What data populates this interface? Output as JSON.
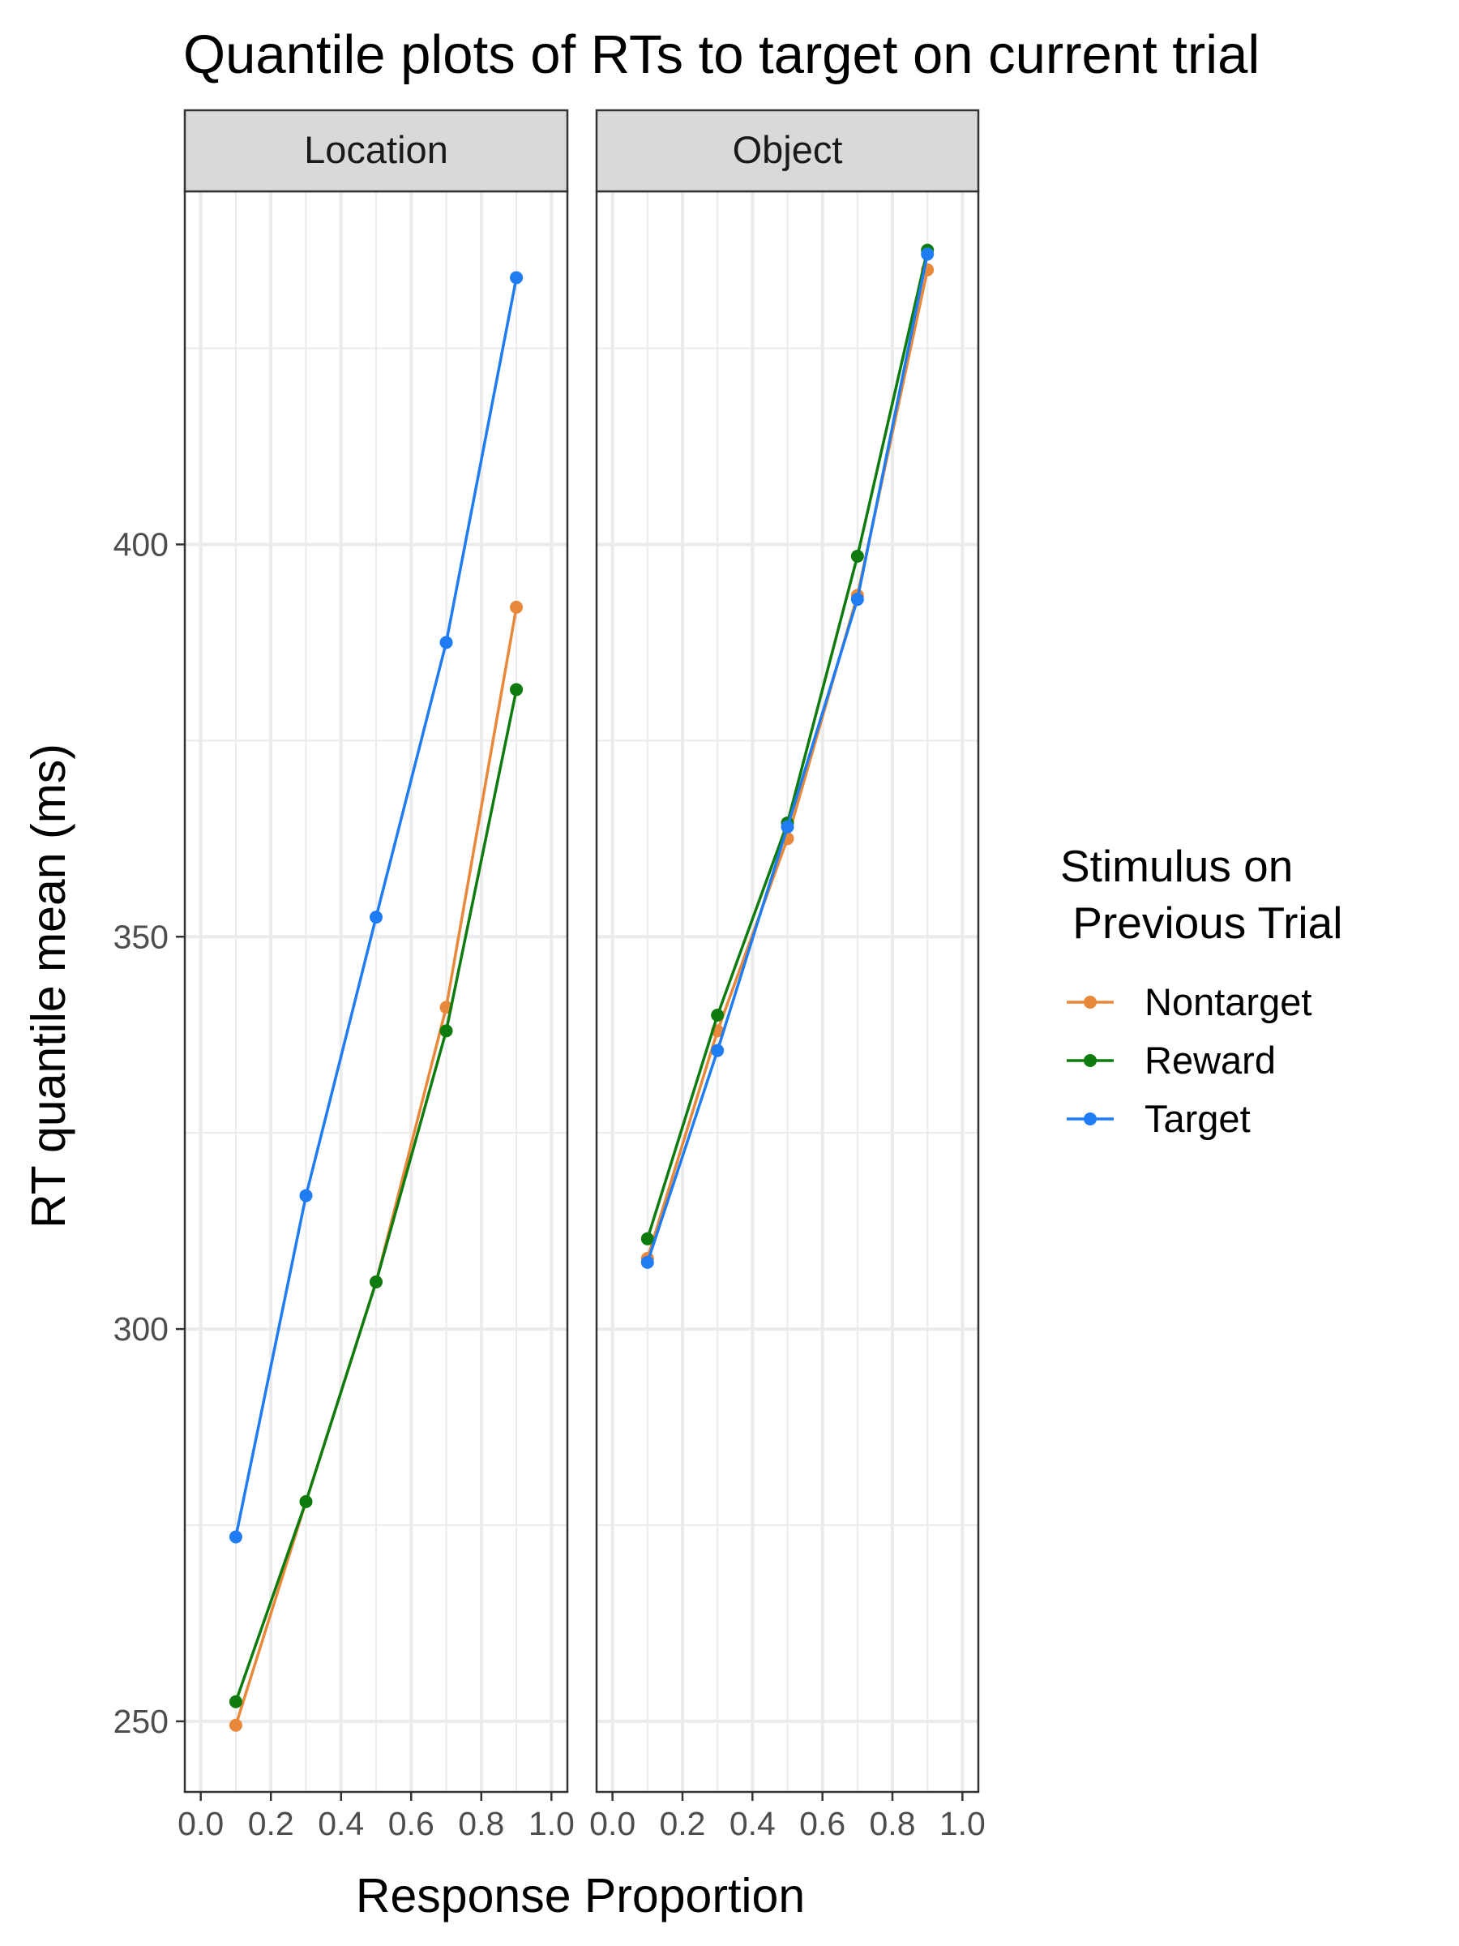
{
  "chart_data": {
    "type": "line",
    "title": "Quantile plots of RTs to target on current trial",
    "xlabel": "Response Proportion",
    "ylabel": "RT quantile mean (ms)",
    "xlim": [
      0,
      1
    ],
    "ylim": [
      241,
      445
    ],
    "x_ticks": [
      {
        "value": 0.0,
        "label": "0.0"
      },
      {
        "value": 0.2,
        "label": "0.2"
      },
      {
        "value": 0.4,
        "label": "0.4"
      },
      {
        "value": 0.6,
        "label": "0.6"
      },
      {
        "value": 0.8,
        "label": "0.8"
      },
      {
        "value": 1.0,
        "label": "1.0"
      }
    ],
    "y_ticks": [
      {
        "value": 250,
        "label": "250"
      },
      {
        "value": 300,
        "label": "300"
      },
      {
        "value": 350,
        "label": "350"
      },
      {
        "value": 400,
        "label": "400"
      }
    ],
    "grid": true,
    "legend": {
      "title_line1": "Stimulus on",
      "title_line2": " Previous Trial",
      "position": "right"
    },
    "series_colors": {
      "Nontarget": "#E8883A",
      "Reward": "#0E7B0E",
      "Target": "#1F7CF2"
    },
    "panels": [
      {
        "label": "Location",
        "series": [
          {
            "name": "Nontarget",
            "x": [
              0.1,
              0.3,
              0.5,
              0.7,
              0.9
            ],
            "y": [
              249.5,
              278,
              306,
              341,
              392
            ]
          },
          {
            "name": "Reward",
            "x": [
              0.1,
              0.3,
              0.5,
              0.7,
              0.9
            ],
            "y": [
              252.5,
              278,
              306,
              338,
              381.5
            ]
          },
          {
            "name": "Target",
            "x": [
              0.1,
              0.3,
              0.5,
              0.7,
              0.9
            ],
            "y": [
              273.5,
              317,
              352.5,
              387.5,
              434
            ]
          }
        ]
      },
      {
        "label": "Object",
        "series": [
          {
            "name": "Nontarget",
            "x": [
              0.1,
              0.3,
              0.5,
              0.7,
              0.9
            ],
            "y": [
              309,
              338,
              362.5,
              393.5,
              435
            ]
          },
          {
            "name": "Reward",
            "x": [
              0.1,
              0.3,
              0.5,
              0.7,
              0.9
            ],
            "y": [
              311.5,
              340,
              364.5,
              398.5,
              437.5
            ]
          },
          {
            "name": "Target",
            "x": [
              0.1,
              0.3,
              0.5,
              0.7,
              0.9
            ],
            "y": [
              308.5,
              335.5,
              364,
              393,
              437
            ]
          }
        ]
      }
    ]
  }
}
